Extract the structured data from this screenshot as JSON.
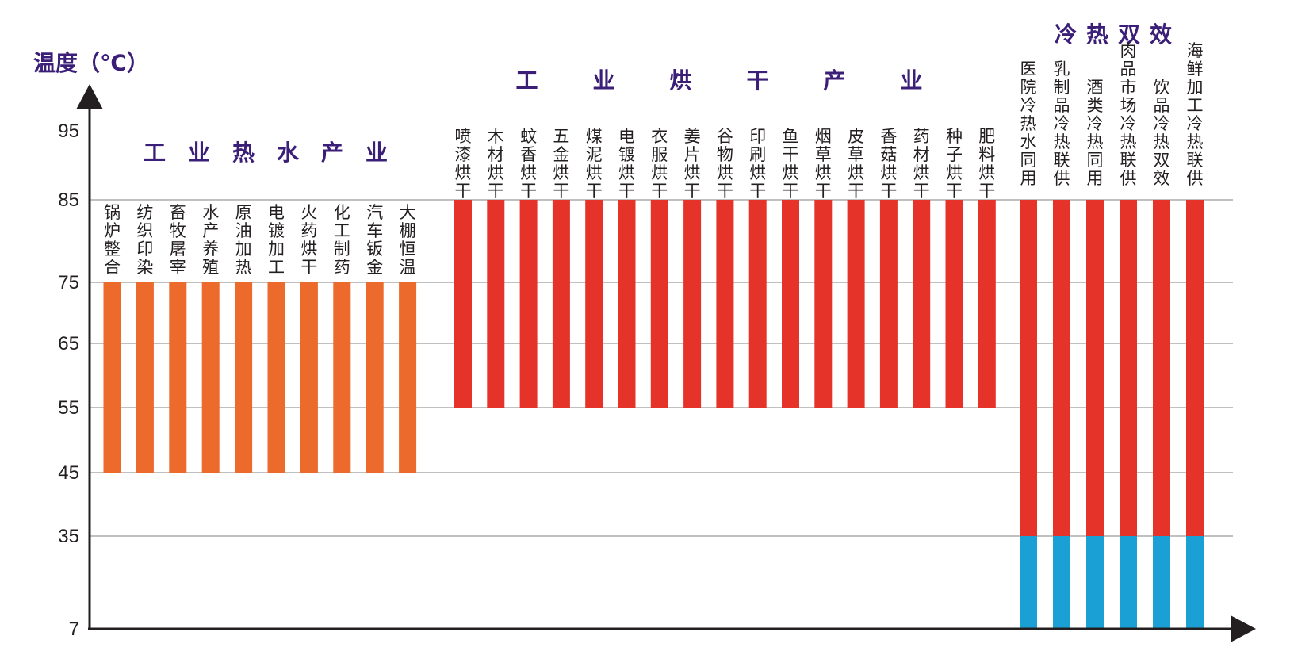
{
  "chart_data": {
    "type": "bar",
    "ylabel": "温度（℃）",
    "y_ticks": [
      7,
      35,
      45,
      55,
      65,
      75,
      85,
      95
    ],
    "colors": {
      "hot_water": "#ec6a2b",
      "drying": "#e6332a",
      "cold": "#1aa0d5",
      "axis": "#231f20",
      "title": "#3b1e78"
    },
    "groups": [
      {
        "title": "工业热水产业",
        "color_key": "hot_water",
        "categories": [
          "锅炉整合",
          "纺织印染",
          "畜牧屠宰",
          "水产养殖",
          "原油加热",
          "电镀加工",
          "火药烘干",
          "化工制药",
          "汽车钣金",
          "大棚恒温"
        ],
        "series": [
          {
            "low": 45,
            "high": 75
          }
        ]
      },
      {
        "title": "工业烘干产业",
        "color_key": "drying",
        "categories": [
          "喷漆烘干",
          "木材烘干",
          "蚊香烘干",
          "五金烘干",
          "煤泥烘干",
          "电镀烘干",
          "衣服烘干",
          "姜片烘干",
          "谷物烘干",
          "印刷烘干",
          "鱼干烘干",
          "烟草烘干",
          "皮草烘干",
          "香菇烘干",
          "药材烘干",
          "种子烘干",
          "肥料烘干"
        ],
        "series": [
          {
            "low": 55,
            "high": 85
          }
        ]
      },
      {
        "title": "冷热双效",
        "color_key": "drying",
        "categories": [
          "医院冷热水同用",
          "乳制品冷热联供",
          "酒类冷热同用",
          "肉品市场冷热联供",
          "饮品冷热双效",
          "海鲜加工冷热联供"
        ],
        "series": [
          {
            "low": 35,
            "high": 85,
            "color_key": "drying"
          },
          {
            "low": 7,
            "high": 35,
            "color_key": "cold"
          }
        ]
      }
    ]
  }
}
